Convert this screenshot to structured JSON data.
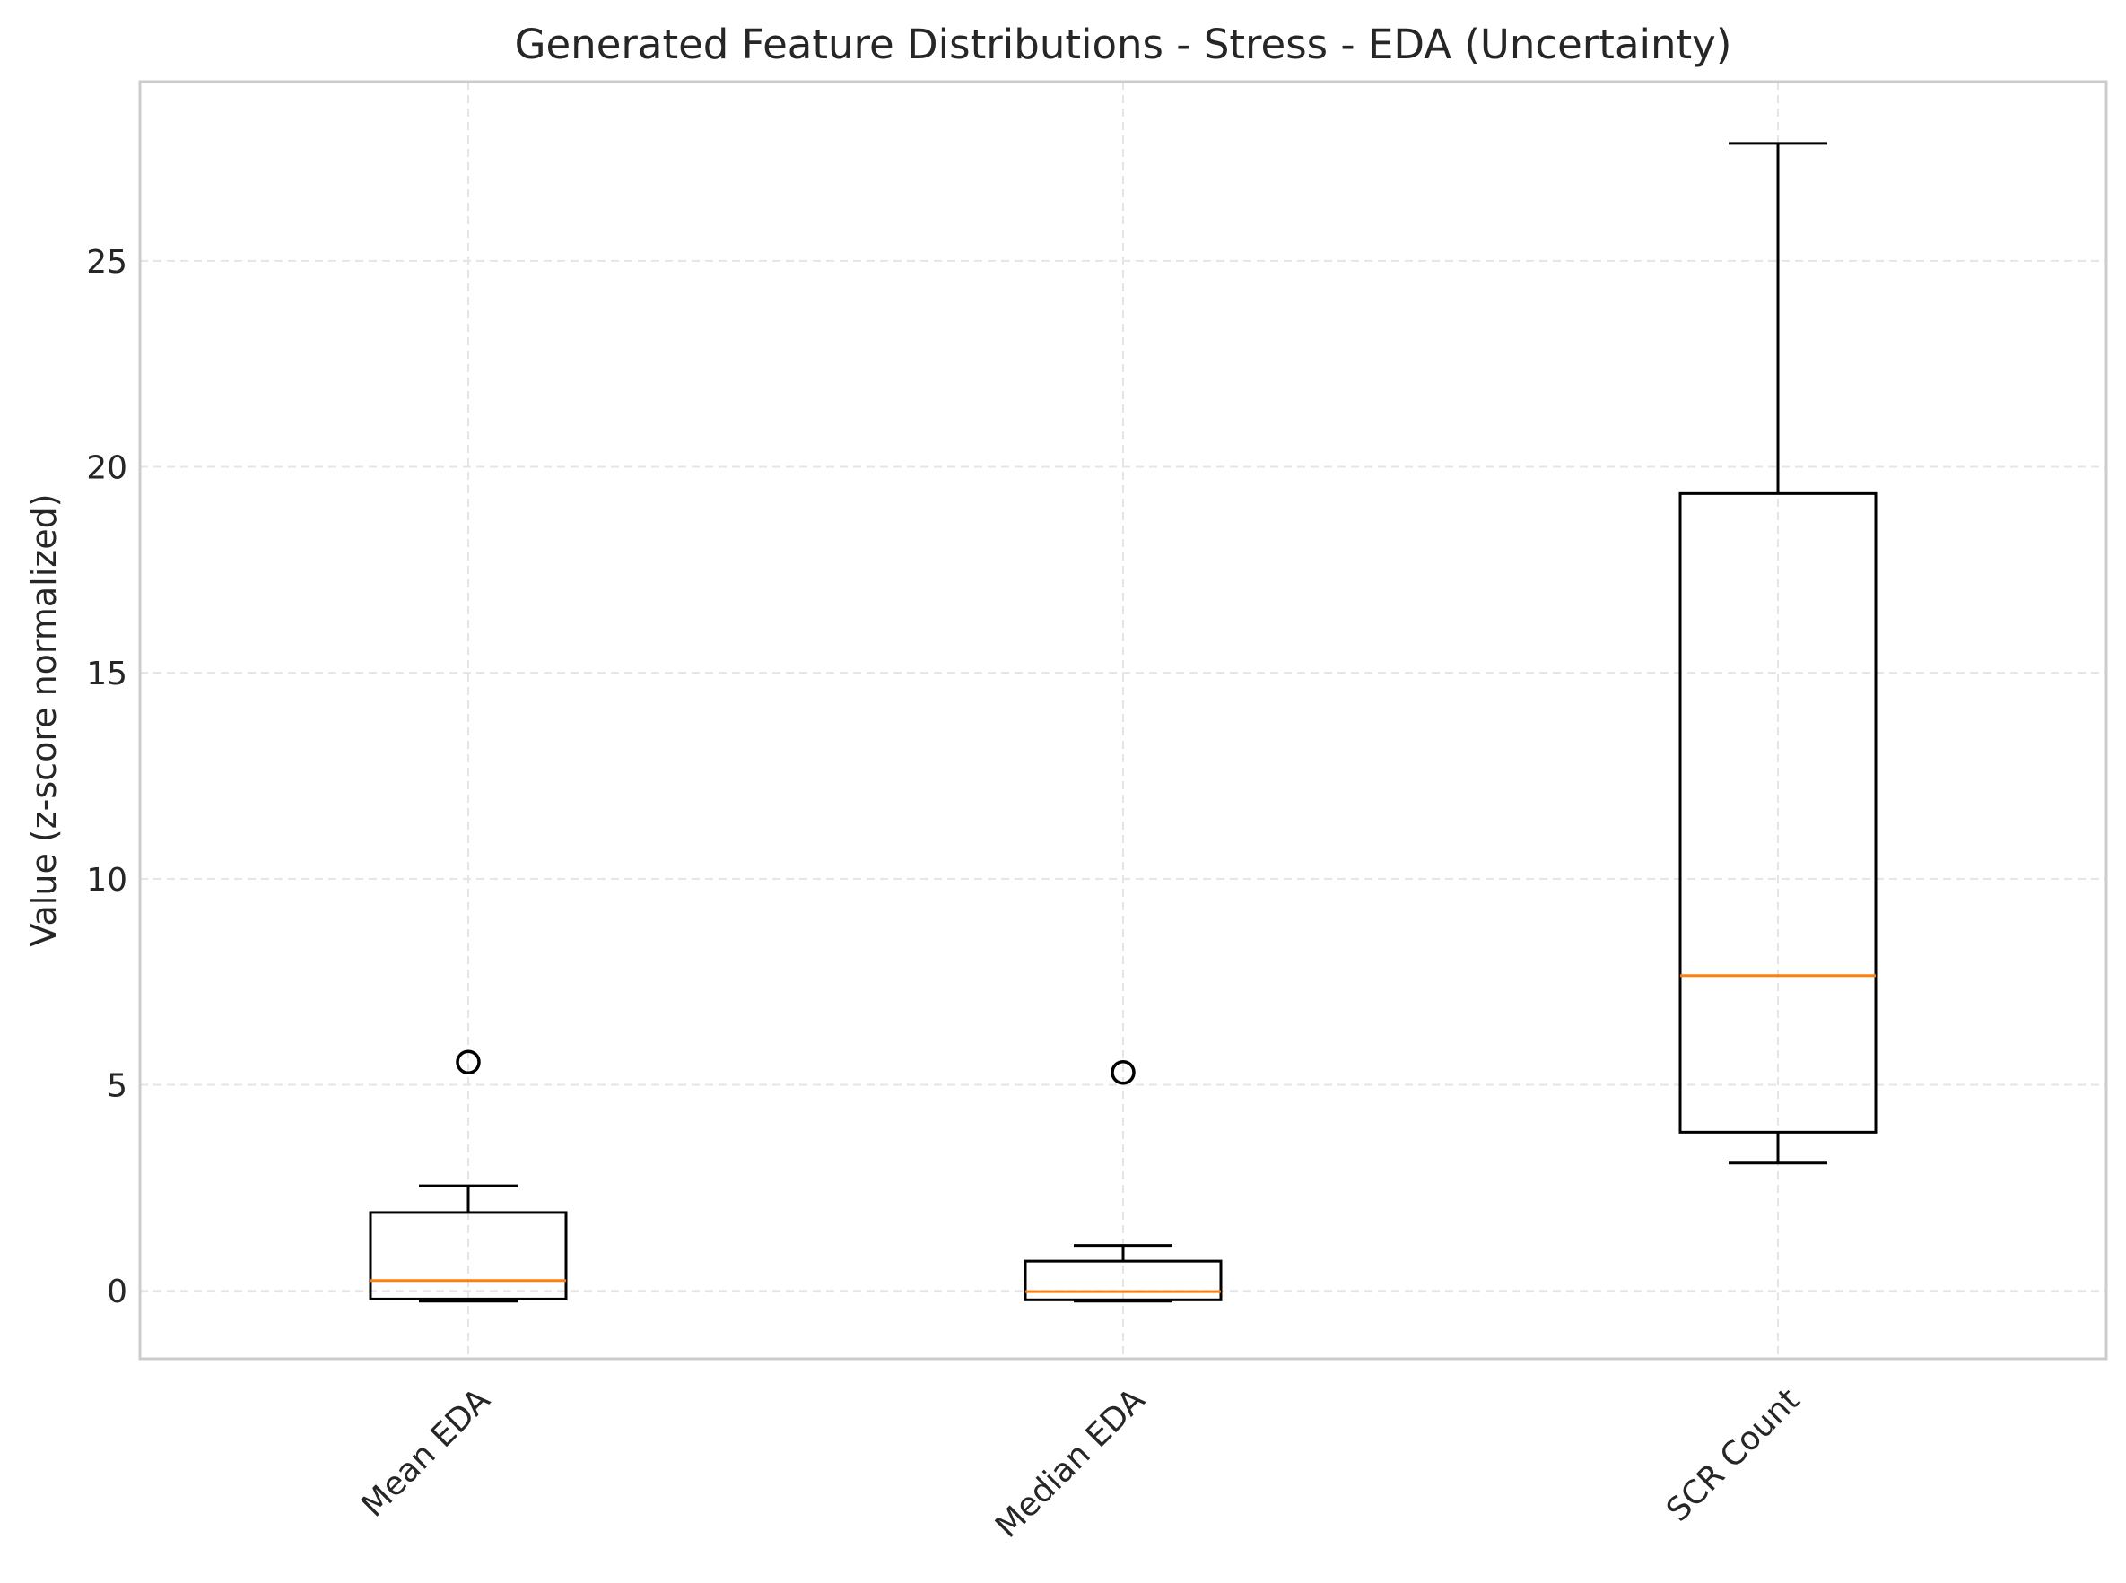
{
  "chart_data": {
    "type": "box",
    "title": "Generated Feature Distributions - Stress - EDA (Uncertainty)",
    "xlabel": "",
    "ylabel": "Value (z-score normalized)",
    "ylim": [
      -1.65,
      29.35
    ],
    "yticks": [
      0,
      5,
      10,
      15,
      20,
      25
    ],
    "grid": true,
    "categories": [
      "Mean EDA",
      "Median EDA",
      "SCR Count"
    ],
    "boxes": [
      {
        "label": "Mean EDA",
        "whislo": -0.25,
        "q1": -0.2,
        "med": 0.25,
        "q3": 1.9,
        "whishi": 2.55,
        "fliers": [
          5.55
        ]
      },
      {
        "label": "Median EDA",
        "whislo": -0.25,
        "q1": -0.22,
        "med": -0.02,
        "q3": 0.72,
        "whishi": 1.1,
        "fliers": [
          5.3
        ]
      },
      {
        "label": "SCR Count",
        "whislo": 3.1,
        "q1": 3.85,
        "med": 7.65,
        "q3": 19.35,
        "whishi": 27.85,
        "fliers": []
      }
    ],
    "colors": {
      "box": "#000000",
      "median": "#ff7f0e",
      "grid": "#e5e5e5",
      "frame": "#cccccc"
    }
  }
}
